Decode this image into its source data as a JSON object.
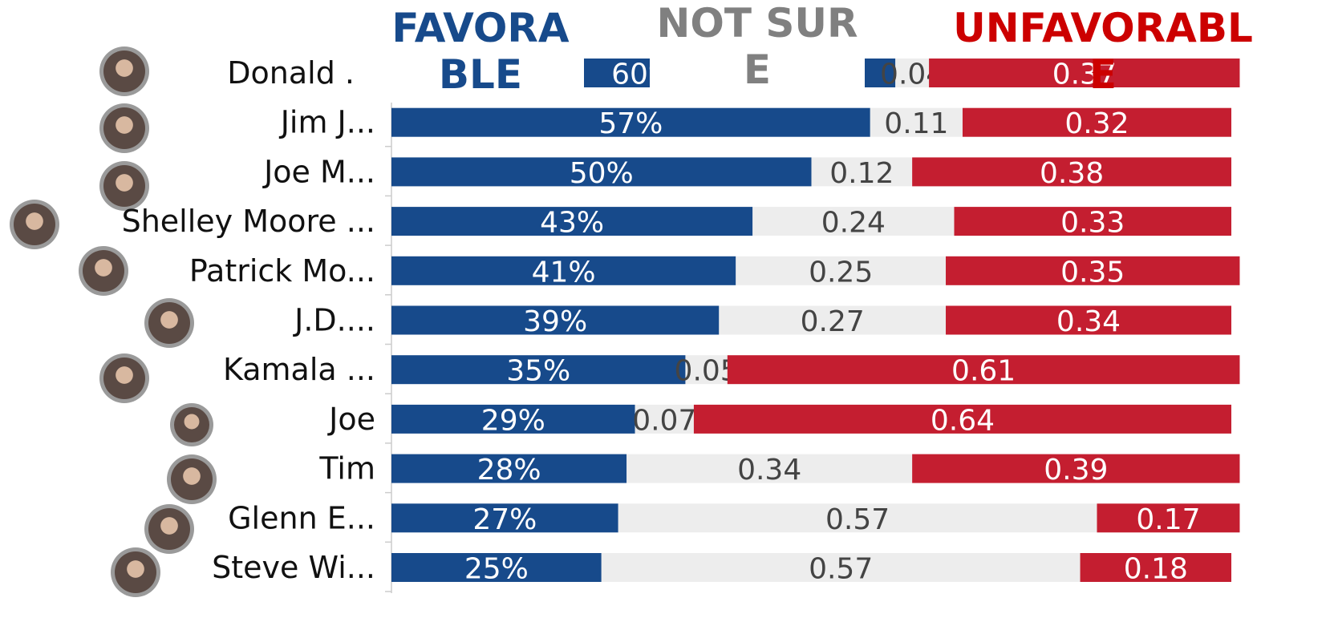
{
  "chart_data": {
    "type": "stacked_bar_horizontal",
    "categories": [
      "Donald .",
      "Jim J...",
      "Joe M...",
      "Shelley Moore ...",
      "Patrick Mo...",
      "J.D....",
      "Kamala ...",
      "Joe",
      "Tim",
      "Glenn E...",
      "Steve Wi..."
    ],
    "xlim": [
      0,
      1
    ],
    "series": [
      {
        "name": "FAVORABLE",
        "color": "#174a8b",
        "label_color": "#ffffff",
        "values": [
          0.6,
          0.57,
          0.5,
          0.43,
          0.41,
          0.39,
          0.35,
          0.29,
          0.28,
          0.27,
          0.25
        ],
        "value_labels": [
          "60%",
          "57%",
          "50%",
          "43%",
          "41%",
          "39%",
          "35%",
          "29%",
          "28%",
          "27%",
          "25%"
        ]
      },
      {
        "name": "NOT SURE",
        "color": "#ededed",
        "label_color": "#444444",
        "values": [
          0.04,
          0.11,
          0.12,
          0.24,
          0.25,
          0.27,
          0.05,
          0.07,
          0.34,
          0.57,
          0.57
        ]
      },
      {
        "name": "UNFAVORABLE",
        "color": "#c41e30",
        "label_color": "#ffffff",
        "values": [
          0.37,
          0.32,
          0.38,
          0.33,
          0.35,
          0.34,
          0.61,
          0.64,
          0.39,
          0.17,
          0.18
        ]
      }
    ]
  }
}
